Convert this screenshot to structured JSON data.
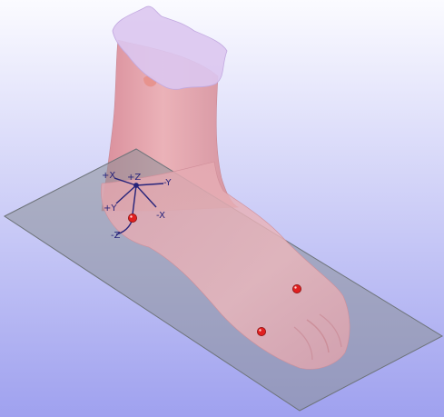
{
  "viewport": {
    "background_top": "#fbfbff",
    "background_bottom": "#9fa1ef"
  },
  "scene": {
    "foot_color": "#e8a9b0",
    "foot_shadow_color": "#c98b95",
    "cut_surface_color": "#dcc6f0",
    "plane_color": "#8a9097",
    "landmark_color": "#e02020",
    "axes_color": "#26237a"
  },
  "axes": {
    "labels": [
      "+X",
      "-Y",
      "+Y",
      "-X",
      "+Z",
      "-Z"
    ]
  }
}
